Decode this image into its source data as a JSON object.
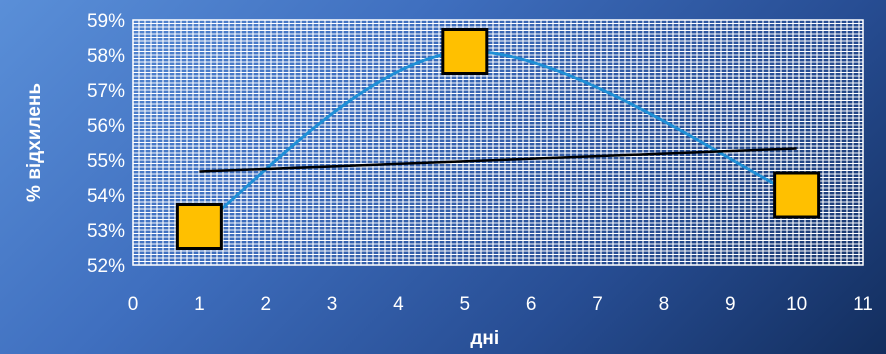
{
  "chart_data": {
    "type": "scatter",
    "xlabel": "дні",
    "ylabel": "% відхилень",
    "xlim": [
      0,
      11
    ],
    "ylim": [
      0.52,
      0.59
    ],
    "x_ticks": [
      "0",
      "1",
      "2",
      "3",
      "4",
      "5",
      "6",
      "7",
      "8",
      "9",
      "10",
      "11"
    ],
    "y_ticks": [
      "52%",
      "53%",
      "54%",
      "55%",
      "56%",
      "57%",
      "58%",
      "59%"
    ],
    "grid": true,
    "legend": "none",
    "series": [
      {
        "kind": "points",
        "x": [
          1,
          5,
          10
        ],
        "y": [
          0.531,
          0.581,
          0.54
        ],
        "marker": "square",
        "color": "#ffc000",
        "smooth_line_color": "#1f8fd6"
      },
      {
        "kind": "trendline",
        "x": [
          1,
          10
        ],
        "y": [
          0.5467,
          0.5533
        ],
        "color": "#000000"
      }
    ]
  },
  "colors": {
    "plot_background": "#ffffff",
    "grid": "#ffffff",
    "text": "#ffffff"
  }
}
